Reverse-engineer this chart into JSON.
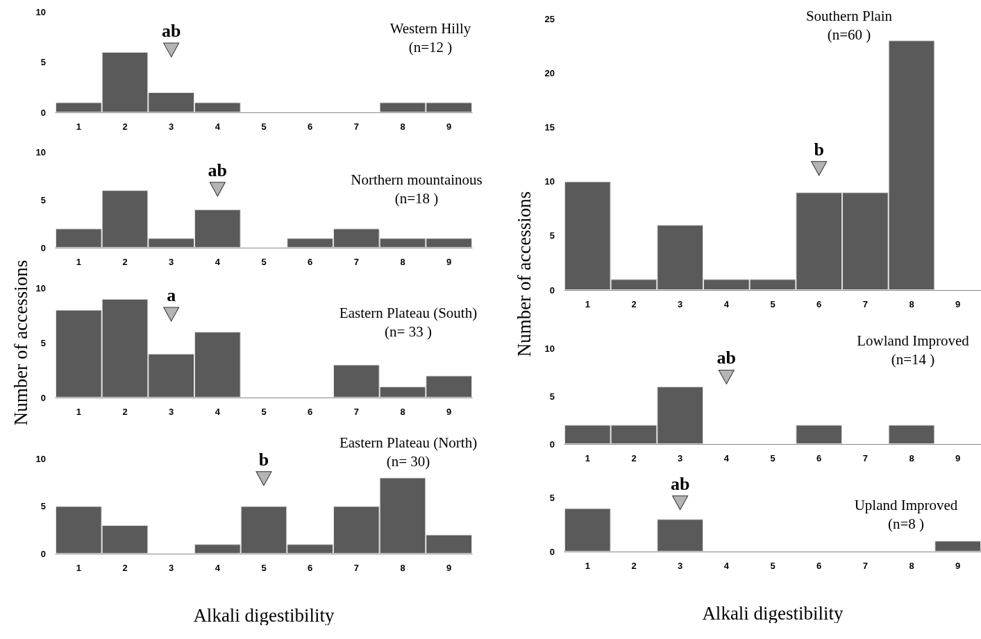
{
  "chart_data": [
    {
      "type": "bar",
      "title": "Western Hilly",
      "subtitle": "(n=12 )",
      "categories": [
        "1",
        "2",
        "3",
        "4",
        "5",
        "6",
        "7",
        "8",
        "9"
      ],
      "values": [
        1,
        6,
        2,
        1,
        0,
        0,
        0,
        1,
        1
      ],
      "color": "#5a5a5a",
      "ylim": [
        0,
        10
      ],
      "yticks": [
        0,
        5,
        10
      ],
      "grid": false,
      "annotations": [
        {
          "text": "ab",
          "x": "3",
          "y": 6.2
        }
      ]
    },
    {
      "type": "bar",
      "title": "Northern mountainous",
      "subtitle": "(n=18 )",
      "categories": [
        "1",
        "2",
        "3",
        "4",
        "5",
        "6",
        "7",
        "8",
        "9"
      ],
      "values": [
        2,
        6,
        1,
        4,
        0,
        1,
        2,
        1,
        1
      ],
      "color": "#5a5a5a",
      "ylim": [
        0,
        10
      ],
      "yticks": [
        0,
        5,
        10
      ],
      "grid": false,
      "annotations": [
        {
          "text": "ab",
          "x": "4",
          "y": 6.1
        }
      ]
    },
    {
      "type": "bar",
      "title": "Eastern Plateau (South)",
      "subtitle": "(n= 33 )",
      "ylabel": "Number of accessions",
      "categories": [
        "1",
        "2",
        "3",
        "4",
        "5",
        "6",
        "7",
        "8",
        "9"
      ],
      "values": [
        8,
        9,
        4,
        6,
        0,
        0,
        3,
        1,
        2
      ],
      "color": "#5a5a5a",
      "ylim": [
        0,
        10
      ],
      "yticks": [
        0,
        5,
        10
      ],
      "grid": false,
      "annotations": [
        {
          "text": "a",
          "x": "3",
          "y": 7.6
        }
      ]
    },
    {
      "type": "bar",
      "title": "Eastern Plateau (North)",
      "subtitle": "(n= 30)",
      "xlabel": "Alkali digestibility",
      "categories": [
        "1",
        "2",
        "3",
        "4",
        "5",
        "6",
        "7",
        "8",
        "9"
      ],
      "values": [
        5,
        3,
        0,
        1,
        5,
        1,
        5,
        8,
        2
      ],
      "color": "#5a5a5a",
      "ylim": [
        0,
        10
      ],
      "yticks": [
        0,
        5,
        10
      ],
      "grid": false,
      "annotations": [
        {
          "text": "b",
          "x": "5",
          "y": 7.9
        }
      ]
    },
    {
      "type": "bar",
      "title": "Southern Plain",
      "subtitle": "(n=60 )",
      "ylabel": "Number of accessions",
      "categories": [
        "1",
        "2",
        "3",
        "4",
        "5",
        "6",
        "7",
        "8",
        "9"
      ],
      "values": [
        10,
        1,
        6,
        1,
        1,
        9,
        9,
        23,
        0
      ],
      "color": "#5a5a5a",
      "ylim": [
        0,
        25
      ],
      "yticks": [
        0,
        5,
        10,
        15,
        20,
        25
      ],
      "grid": false,
      "annotations": [
        {
          "text": "b",
          "x": "6",
          "y": 11.2
        }
      ]
    },
    {
      "type": "bar",
      "title": "Lowland Improved",
      "subtitle": "(n=14 )",
      "categories": [
        "1",
        "2",
        "3",
        "4",
        "5",
        "6",
        "7",
        "8",
        "9"
      ],
      "values": [
        2,
        2,
        6,
        0,
        0,
        2,
        0,
        2,
        0
      ],
      "color": "#5a5a5a",
      "ylim": [
        0,
        10
      ],
      "yticks": [
        0,
        5,
        10
      ],
      "grid": false,
      "annotations": [
        {
          "text": "ab",
          "x": "4",
          "y": 7.0
        }
      ]
    },
    {
      "type": "bar",
      "title": "Upland Improved",
      "subtitle": "(n=8 )",
      "xlabel": "Alkali digestibility",
      "categories": [
        "1",
        "2",
        "3",
        "4",
        "5",
        "6",
        "7",
        "8",
        "9"
      ],
      "values": [
        4,
        0,
        3,
        0,
        0,
        0,
        0,
        0,
        1
      ],
      "color": "#5a5a5a",
      "ylim": [
        0,
        5
      ],
      "yticks": [
        0,
        5
      ],
      "grid": false,
      "annotations": [
        {
          "text": "ab",
          "x": "3",
          "y": 4.5
        }
      ]
    }
  ]
}
